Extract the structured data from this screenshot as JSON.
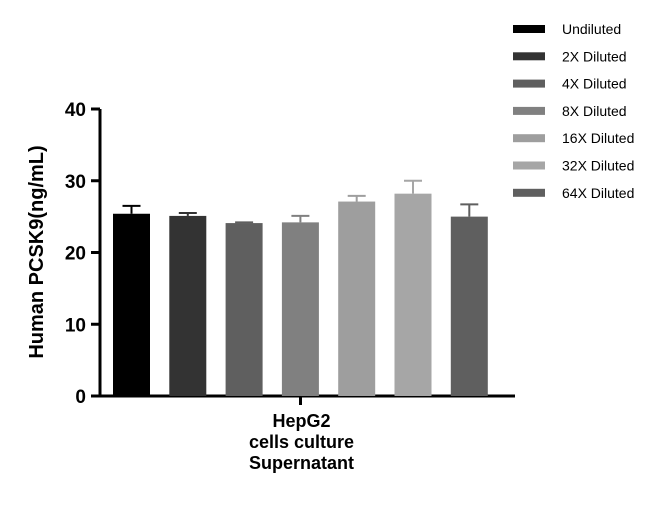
{
  "chart_data": {
    "type": "bar",
    "ylabel": "Human PCSK9(ng/mL)",
    "xlabel_lines": [
      "HepG2",
      "cells culture",
      "Supernatant"
    ],
    "ylim": [
      0,
      40
    ],
    "yticks": [
      0,
      10,
      20,
      30,
      40
    ],
    "grid": false,
    "legend_position": "top-right",
    "series": [
      {
        "name": "Undiluted",
        "value": 25.4,
        "error": 1.1,
        "color": "#000000"
      },
      {
        "name": "2X Diluted",
        "value": 25.1,
        "error": 0.4,
        "color": "#333333"
      },
      {
        "name": "4X Diluted",
        "value": 24.1,
        "error": 0.1,
        "color": "#5f5f5f"
      },
      {
        "name": "8X Diluted",
        "value": 24.2,
        "error": 0.9,
        "color": "#808080"
      },
      {
        "name": "16X Diluted",
        "value": 27.1,
        "error": 0.8,
        "color": "#9e9e9e"
      },
      {
        "name": "32X Diluted",
        "value": 28.2,
        "error": 1.8,
        "color": "#a6a6a6"
      },
      {
        "name": "64X Diluted",
        "value": 25.0,
        "error": 1.7,
        "color": "#5f5f5f"
      }
    ]
  }
}
